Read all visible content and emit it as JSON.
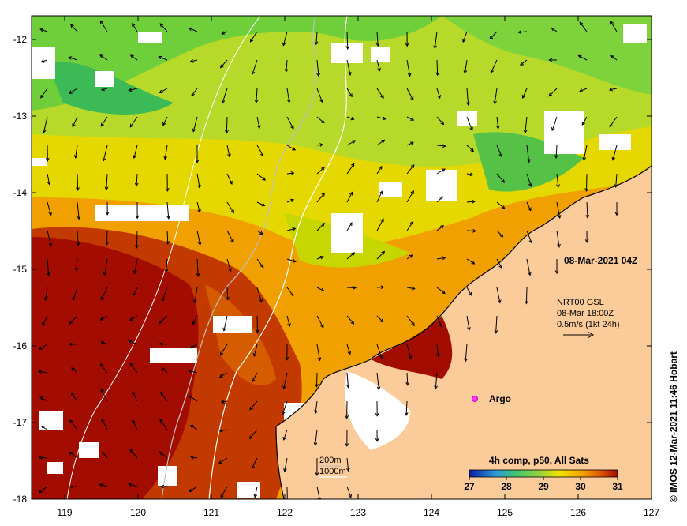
{
  "map": {
    "timestamp": "08-Mar-2021 04Z",
    "current_source": "NRT00 GSL",
    "current_time": "08-Mar 18:00Z",
    "scale_label": "0.5m/s (1kt 24h)",
    "argo_label": "Argo",
    "contour_legend": [
      "200m",
      "1000m"
    ],
    "colorbar_title": "4h comp, p50, All Sats",
    "colorbar_ticks": [
      "27",
      "28",
      "29",
      "30",
      "31"
    ],
    "credit": "© IMOS 12-Mar-2021 11:46 Hobart",
    "lon_ticks": [
      "119",
      "120",
      "121",
      "122",
      "123",
      "124",
      "125",
      "126",
      "127"
    ],
    "lat_ticks": [
      "-12",
      "-13",
      "-14",
      "-15",
      "-16",
      "-17",
      "-18"
    ],
    "colors": {
      "land": "#fccb9a",
      "cold": "#0a1f9e",
      "mid": "#9ad23c",
      "warm": "#f5a800",
      "hot": "#a30c00"
    }
  }
}
